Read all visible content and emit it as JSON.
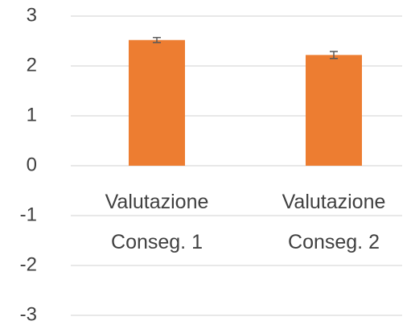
{
  "chart_data": {
    "type": "bar",
    "categories": [
      "Valutazione Conseg. 1",
      "Valutazione Conseg. 2"
    ],
    "values": [
      2.52,
      2.22
    ],
    "errors": [
      0.05,
      0.07
    ],
    "color": "#ed7d31",
    "ylim": [
      -3,
      3
    ],
    "yticks": [
      -3,
      -2,
      -1,
      0,
      1,
      2,
      3
    ],
    "grid": true
  }
}
